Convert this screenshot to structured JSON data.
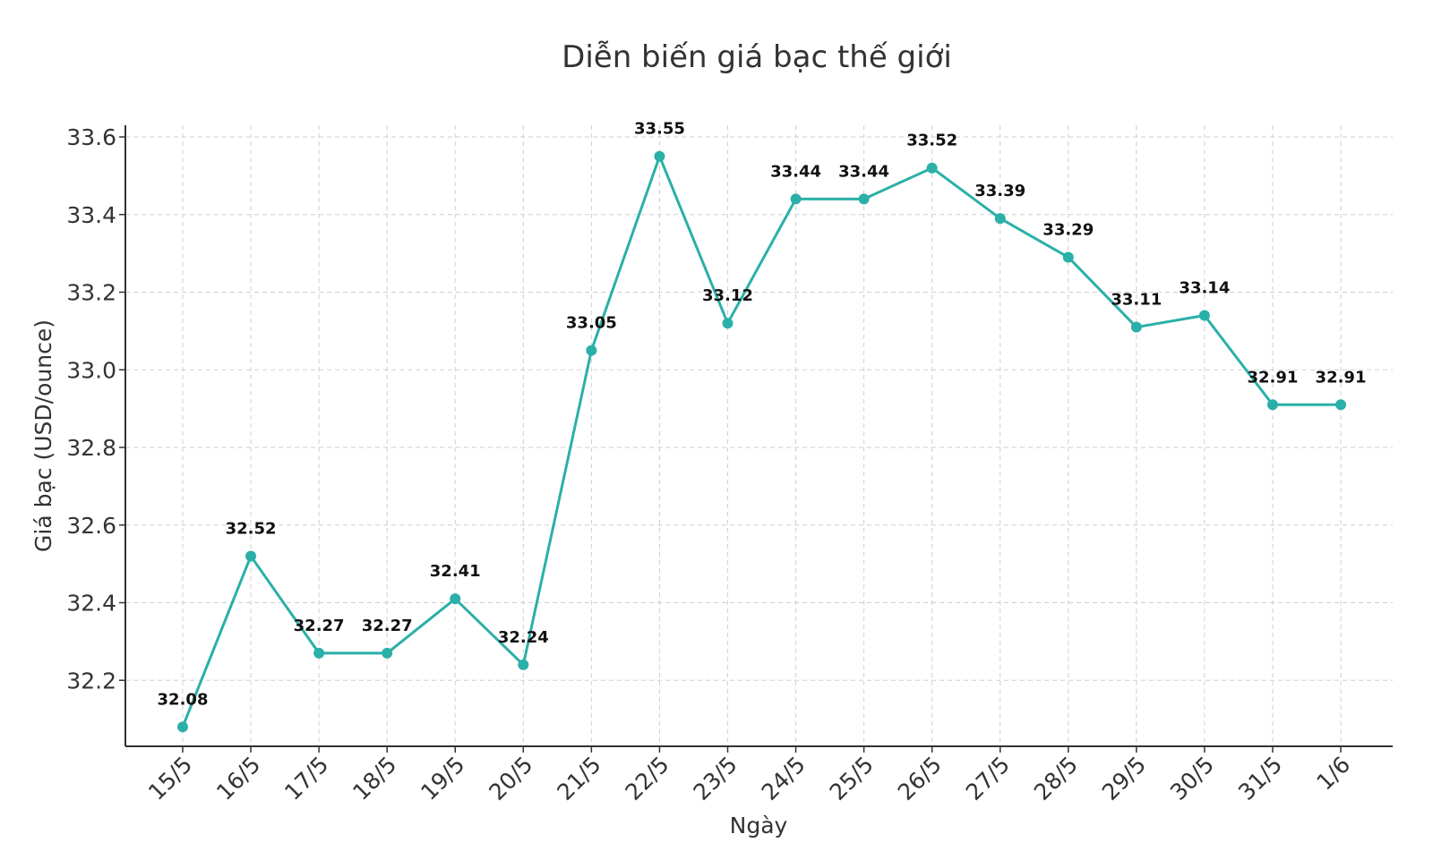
{
  "chart_data": {
    "type": "line",
    "title": "Diễn biến giá bạc thế giới",
    "xlabel": "Ngày",
    "ylabel": "Giá bạc (USD/ounce)",
    "categories": [
      "15/5",
      "16/5",
      "17/5",
      "18/5",
      "19/5",
      "20/5",
      "21/5",
      "22/5",
      "23/5",
      "24/5",
      "25/5",
      "26/5",
      "27/5",
      "28/5",
      "29/5",
      "30/5",
      "31/5",
      "1/6"
    ],
    "series": [
      {
        "values": [
          32.08,
          32.52,
          32.27,
          32.27,
          32.41,
          32.24,
          33.05,
          33.55,
          33.12,
          33.44,
          33.44,
          33.52,
          33.39,
          33.29,
          33.11,
          33.14,
          32.91,
          32.91
        ],
        "labels": [
          "32.08",
          "32.52",
          "32.27",
          "32.27",
          "32.41",
          "32.24",
          "33.05",
          "33.55",
          "33.12",
          "33.44",
          "33.44",
          "33.52",
          "33.39",
          "33.29",
          "33.11",
          "33.14",
          "32.91",
          "32.91"
        ],
        "color": "#2ab0a8"
      }
    ],
    "yticks": [
      "32.2",
      "32.4",
      "32.6",
      "32.8",
      "33.0",
      "33.2",
      "33.4",
      "33.6"
    ],
    "ylim": [
      32.03,
      33.63
    ],
    "grid": true,
    "legend": false
  }
}
